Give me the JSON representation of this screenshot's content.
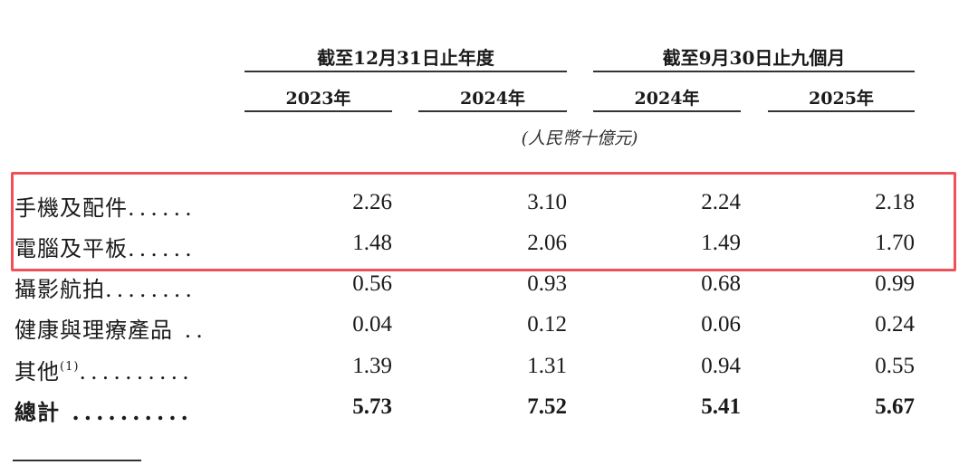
{
  "header": {
    "groups": [
      "截至12月31日止年度",
      "截至9月30日止九個月"
    ],
    "years": [
      "2023年",
      "2024年",
      "2024年",
      "2025年"
    ],
    "unit": "(人民幣十億元)"
  },
  "rows": [
    {
      "label": "手機及配件",
      "dots": "......",
      "values": [
        "2.26",
        "3.10",
        "2.24",
        "2.18"
      ],
      "highlighted": true
    },
    {
      "label": "電腦及平板",
      "dots": "......",
      "values": [
        "1.48",
        "2.06",
        "1.49",
        "1.70"
      ],
      "highlighted": true
    },
    {
      "label": "攝影航拍",
      "dots": "........",
      "values": [
        "0.56",
        "0.93",
        "0.68",
        "0.99"
      ]
    },
    {
      "label": "健康與理療產品",
      "dots": " ..",
      "values": [
        "0.04",
        "0.12",
        "0.06",
        "0.24"
      ]
    },
    {
      "label": "其他",
      "sup": "(1)",
      "dots": "..........",
      "values": [
        "1.39",
        "1.31",
        "0.94",
        "0.55"
      ]
    },
    {
      "label": "總計",
      "dots": " ..........",
      "values": [
        "5.73",
        "7.52",
        "5.41",
        "5.67"
      ],
      "bold": true
    }
  ],
  "highlight_color": "#f0505a"
}
